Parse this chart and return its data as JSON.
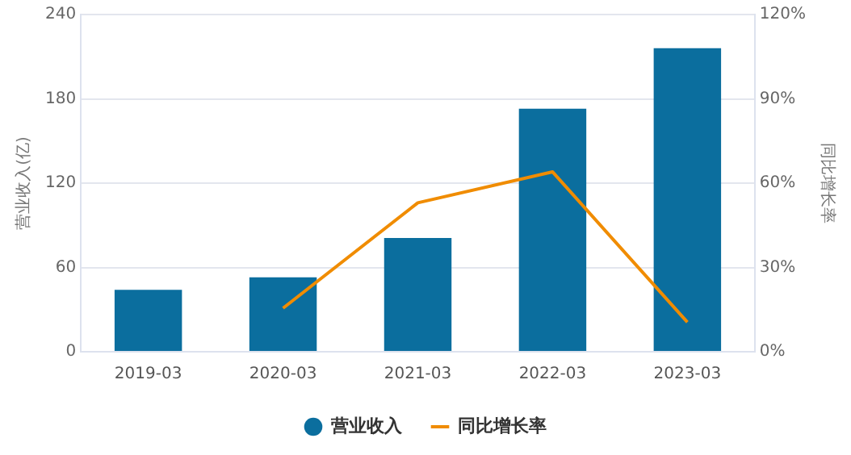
{
  "chart_data": {
    "type": "bar",
    "categories": [
      "2019-03",
      "2020-03",
      "2021-03",
      "2022-03",
      "2023-03"
    ],
    "series": [
      {
        "name": "营业收入",
        "color": "#0b6e9e",
        "values": [
          44,
          53,
          81,
          173,
          216
        ]
      },
      {
        "name": "同比增长率",
        "type": "line",
        "axis": "y2",
        "color": "#f08c00",
        "values": [
          null,
          15.5,
          53,
          64,
          10.5
        ]
      }
    ],
    "ylabel": "营业收入(亿)",
    "y2label": "同比增长率",
    "ylim": [
      0,
      240
    ],
    "yticks": [
      0,
      60,
      120,
      180,
      240
    ],
    "y2lim": [
      0,
      120
    ],
    "y2ticks": [
      {
        "value": 0,
        "label": "0%"
      },
      {
        "value": 30,
        "label": "30%"
      },
      {
        "value": 60,
        "label": "60%"
      },
      {
        "value": 90,
        "label": "90%"
      },
      {
        "value": 120,
        "label": "120%"
      }
    ],
    "grid": "y",
    "legend": "bottom",
    "marker": "none",
    "line_style": "solid"
  }
}
